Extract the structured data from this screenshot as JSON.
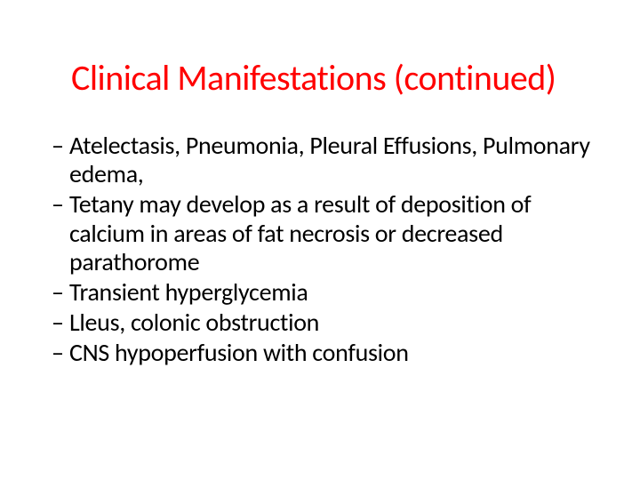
{
  "title": {
    "text": "Clinical Manifestations (continued)",
    "color": "#ff0000",
    "fontsize": 40
  },
  "bullets": [
    "Atelectasis, Pneumonia, Pleural Effusions, Pulmonary edema,",
    "Tetany may develop as a result of deposition of calcium in areas of fat necrosis or  decreased parathorome",
    "Transient hyperglycemia",
    "Lleus, colonic obstruction",
    "CNS hypoperfusion with confusion"
  ],
  "dash": "–",
  "body_color": "#000000",
  "body_fontsize": 28,
  "background_color": "#ffffff",
  "slide_width": 720,
  "slide_height": 540
}
